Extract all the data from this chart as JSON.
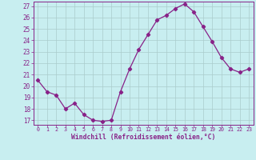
{
  "x": [
    0,
    1,
    2,
    3,
    4,
    5,
    6,
    7,
    8,
    9,
    10,
    11,
    12,
    13,
    14,
    15,
    16,
    17,
    18,
    19,
    20,
    21,
    22,
    23
  ],
  "y": [
    20.5,
    19.5,
    19.2,
    18.0,
    18.5,
    17.5,
    17.0,
    16.9,
    17.0,
    19.5,
    21.5,
    23.2,
    24.5,
    25.8,
    26.2,
    26.8,
    27.2,
    26.5,
    25.2,
    23.9,
    22.5,
    21.5,
    21.2,
    21.5
  ],
  "ylim": [
    16.6,
    27.4
  ],
  "yticks": [
    17,
    18,
    19,
    20,
    21,
    22,
    23,
    24,
    25,
    26,
    27
  ],
  "xticks": [
    0,
    1,
    2,
    3,
    4,
    5,
    6,
    7,
    8,
    9,
    10,
    11,
    12,
    13,
    14,
    15,
    16,
    17,
    18,
    19,
    20,
    21,
    22,
    23
  ],
  "xlabel": "Windchill (Refroidissement éolien,°C)",
  "line_color": "#882288",
  "marker": "D",
  "marker_size": 2.2,
  "bg_color": "#c8eef0",
  "grid_color": "#aacccc",
  "title": ""
}
